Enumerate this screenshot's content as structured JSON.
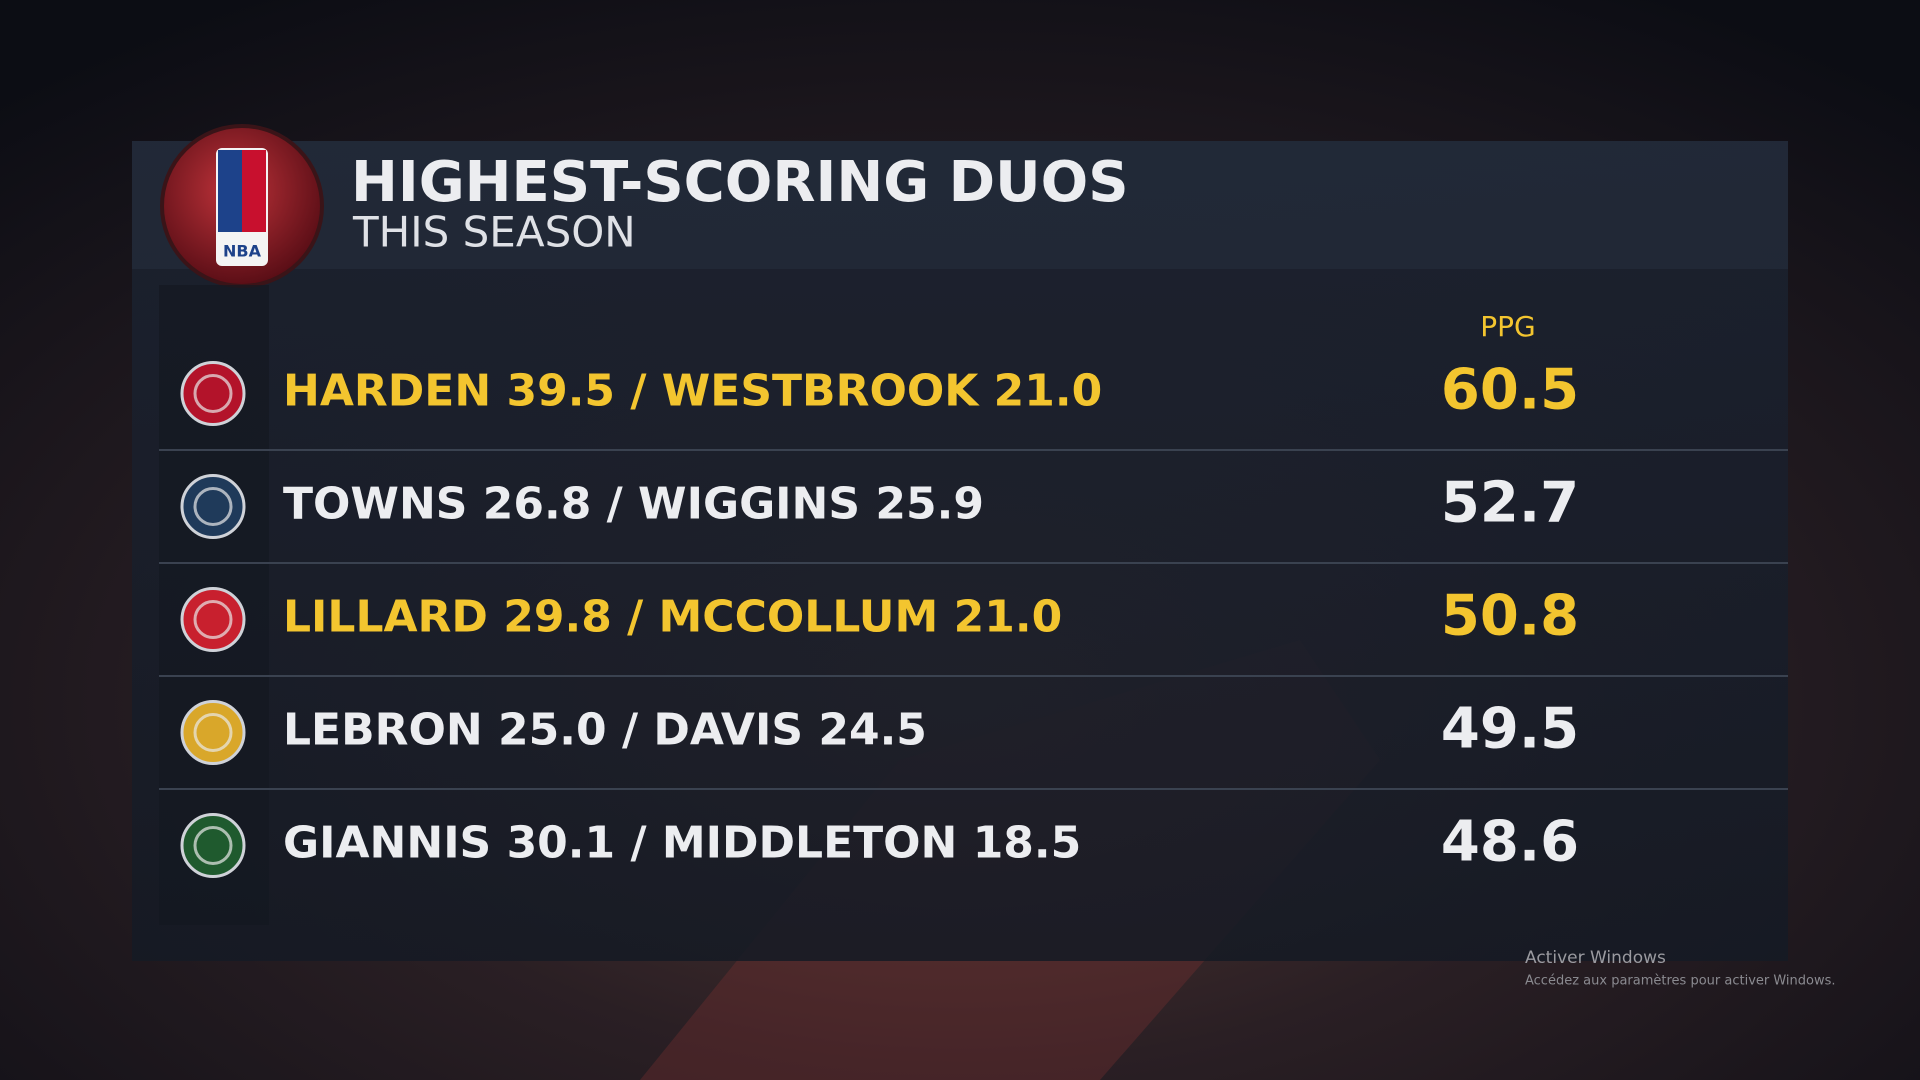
{
  "header": {
    "logo_text": "NBA",
    "title": "HIGHEST-SCORING DUOS",
    "subtitle": "THIS SEASON"
  },
  "table": {
    "column_header": "PPG",
    "rows": [
      {
        "label": "HARDEN 39.5 / WESTBROOK 21.0",
        "ppg": "60.5",
        "highlight": true,
        "color": "#b3132a"
      },
      {
        "label": "TOWNS 26.8 / WIGGINS 25.9",
        "ppg": "52.7",
        "highlight": false,
        "color": "#1f3a5a"
      },
      {
        "label": "LILLARD 29.8 / MCCOLLUM 21.0",
        "ppg": "50.8",
        "highlight": true,
        "color": "#c8202e"
      },
      {
        "label": "LEBRON 25.0 / DAVIS 24.5",
        "ppg": "49.5",
        "highlight": false,
        "color": "#d9a72a"
      },
      {
        "label": "GIANNIS 30.1 / MIDDLETON 18.5",
        "ppg": "48.6",
        "highlight": false,
        "color": "#1f5a2e"
      }
    ],
    "highlight_color": "#f3c52f",
    "text_color": "#ecedf0"
  },
  "watermark": {
    "title": "Activer Windows",
    "text": "Accédez aux paramètres pour activer Windows."
  }
}
